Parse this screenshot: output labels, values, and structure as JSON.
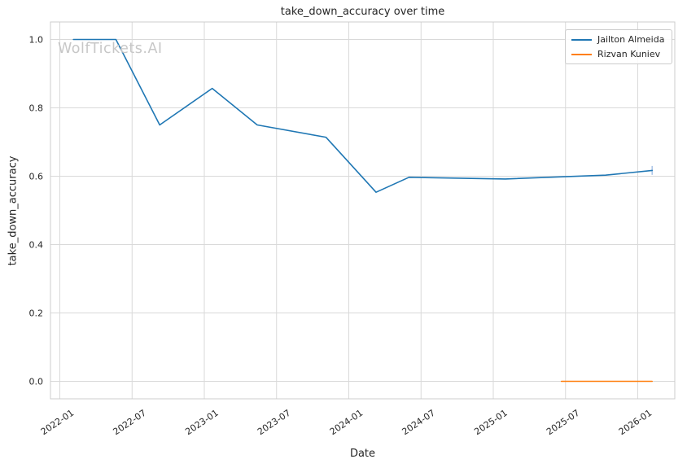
{
  "page": {
    "watermark": "WolfTickets.AI"
  },
  "chart_data": {
    "type": "line",
    "title": "take_down_accuracy over time",
    "xlabel": "Date",
    "ylabel": "take_down_accuracy",
    "grid": true,
    "legend_position": "upper right",
    "x_ticks": [
      "2022-01",
      "2022-07",
      "2023-01",
      "2023-07",
      "2024-01",
      "2024-07",
      "2025-01",
      "2025-07",
      "2026-01"
    ],
    "y_ticks": [
      "0.0",
      "0.2",
      "0.4",
      "0.6",
      "0.8",
      "1.0"
    ],
    "ylim": [
      -0.051,
      1.052
    ],
    "xlim": [
      "2021-12-10",
      "2026-04-05"
    ],
    "colors": {
      "series1": "#1f77b4",
      "series2": "#ff7f0e",
      "error_bar": "#aec7e8",
      "grid": "#d9d9d9",
      "spine": "#cccccc",
      "text": "#262626"
    },
    "series": [
      {
        "name": "Jailton Almeida",
        "color": "#1f77b4",
        "x": [
          "2022-02-05",
          "2022-05-21",
          "2022-09-10",
          "2023-01-21",
          "2023-05-13",
          "2023-11-04",
          "2024-03-09",
          "2024-06-01",
          "2025-02-01",
          "2025-10-11",
          "2026-02-07"
        ],
        "y": [
          1.0,
          1.0,
          0.75,
          0.857,
          0.75,
          0.714,
          0.553,
          0.597,
          0.592,
          0.603,
          0.617
        ]
      },
      {
        "name": "Rizvan Kuniev",
        "color": "#ff7f0e",
        "x": [
          "2025-06-21",
          "2026-02-07"
        ],
        "y": [
          0.0,
          0.0
        ]
      }
    ],
    "last_point_error": {
      "series": "Jailton Almeida",
      "x": "2026-02-07",
      "low": 0.604,
      "high": 0.63,
      "color": "#aec7e8"
    }
  }
}
